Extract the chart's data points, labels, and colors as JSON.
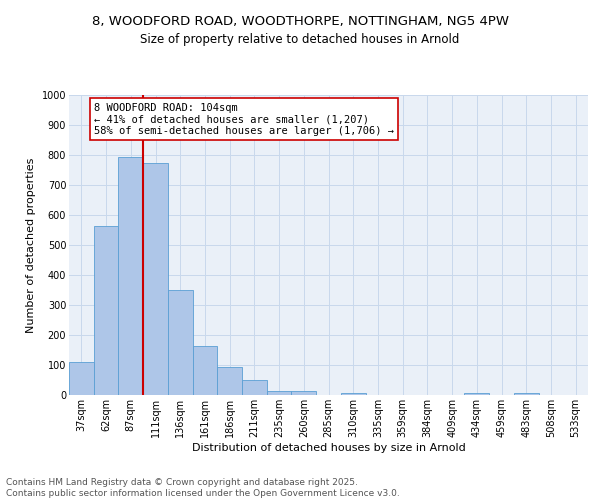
{
  "title1": "8, WOODFORD ROAD, WOODTHORPE, NOTTINGHAM, NG5 4PW",
  "title2": "Size of property relative to detached houses in Arnold",
  "xlabel": "Distribution of detached houses by size in Arnold",
  "ylabel": "Number of detached properties",
  "categories": [
    "37sqm",
    "62sqm",
    "87sqm",
    "111sqm",
    "136sqm",
    "161sqm",
    "186sqm",
    "211sqm",
    "235sqm",
    "260sqm",
    "285sqm",
    "310sqm",
    "335sqm",
    "359sqm",
    "384sqm",
    "409sqm",
    "434sqm",
    "459sqm",
    "483sqm",
    "508sqm",
    "533sqm"
  ],
  "values": [
    110,
    565,
    795,
    775,
    350,
    165,
    95,
    50,
    15,
    12,
    0,
    8,
    0,
    0,
    0,
    0,
    8,
    0,
    8,
    0,
    0
  ],
  "bar_color": "#aec6e8",
  "bar_edge_color": "#5a9fd4",
  "grid_color": "#c8d8ec",
  "background_color": "#eaf0f8",
  "vline_color": "#cc0000",
  "annotation_text": "8 WOODFORD ROAD: 104sqm\n← 41% of detached houses are smaller (1,207)\n58% of semi-detached houses are larger (1,706) →",
  "annotation_box_color": "#ffffff",
  "annotation_box_edge_color": "#cc0000",
  "ylim": [
    0,
    1000
  ],
  "yticks": [
    0,
    100,
    200,
    300,
    400,
    500,
    600,
    700,
    800,
    900,
    1000
  ],
  "footer_text": "Contains HM Land Registry data © Crown copyright and database right 2025.\nContains public sector information licensed under the Open Government Licence v3.0.",
  "title1_fontsize": 9.5,
  "title2_fontsize": 8.5,
  "xlabel_fontsize": 8,
  "ylabel_fontsize": 8,
  "tick_fontsize": 7,
  "annotation_fontsize": 7.5,
  "footer_fontsize": 6.5
}
